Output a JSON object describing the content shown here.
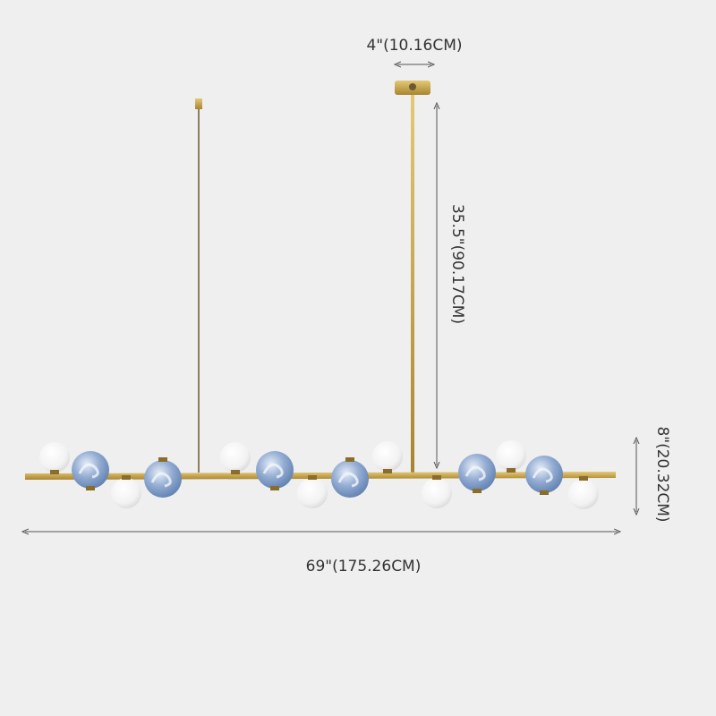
{
  "dimensions": {
    "canopy_width": "4\"(10.16CM)",
    "rod_length": "35.5\"(90.17CM)",
    "fixture_height": "8\"(20.32CM)",
    "total_length": "69\"(175.26CM)"
  },
  "colors": {
    "background": "#efefef",
    "brass": "#c9a64a",
    "white_globe": "#f7f7f7",
    "blue_globe": "#8fa9cf"
  }
}
